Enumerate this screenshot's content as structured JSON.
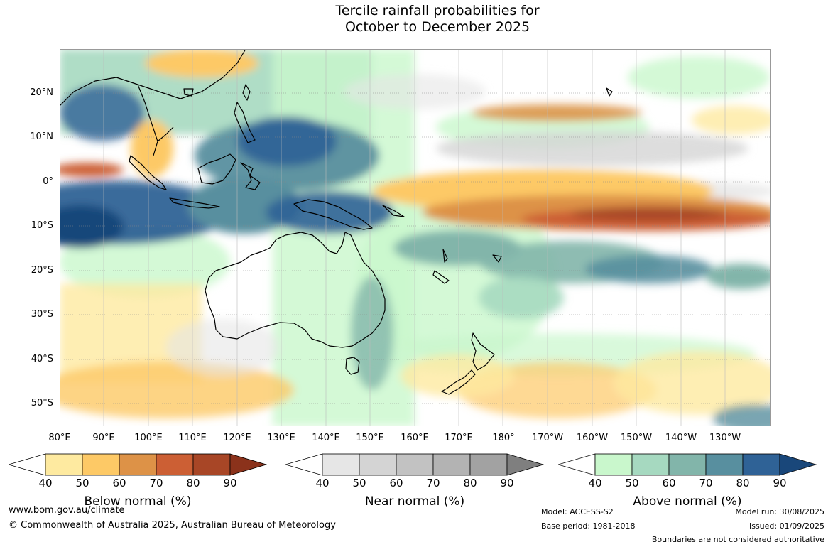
{
  "title_line1": "Tercile rainfall probabilities for",
  "title_line2": "October to December 2025",
  "lat_labels": [
    "20°N",
    "10°N",
    "0°",
    "10°S",
    "20°S",
    "30°S",
    "40°S",
    "50°S"
  ],
  "lon_labels": [
    "80°E",
    "90°E",
    "100°E",
    "110°E",
    "120°E",
    "130°E",
    "140°E",
    "150°E",
    "160°E",
    "170°E",
    "180°",
    "170°W",
    "160°W",
    "150°W",
    "140°W",
    "130°W"
  ],
  "colorbars": [
    {
      "title": "Below normal (%)",
      "ticks": [
        "40",
        "50",
        "60",
        "70",
        "80",
        "90"
      ],
      "colors": [
        "#ffffff",
        "#feeaa0",
        "#fdc966",
        "#dd9247",
        "#cc5f34",
        "#a84626",
        "#8b321b"
      ]
    },
    {
      "title": "Near normal (%)",
      "ticks": [
        "40",
        "50",
        "60",
        "70",
        "80",
        "90"
      ],
      "colors": [
        "#ffffff",
        "#e6e6e6",
        "#d4d4d4",
        "#c2c2c2",
        "#b3b3b3",
        "#a2a2a2",
        "#7f7f7f"
      ]
    },
    {
      "title": "Above normal (%)",
      "ticks": [
        "40",
        "50",
        "60",
        "70",
        "80",
        "90"
      ],
      "colors": [
        "#ffffff",
        "#c9f7cc",
        "#a6d9c0",
        "#82b5aa",
        "#588f9f",
        "#2f6296",
        "#19477a"
      ]
    }
  ],
  "footer": {
    "url": "www.bom.gov.au/climate",
    "copyright": "© Commonwealth of Australia 2025, Australian Bureau of Meteorology",
    "model": "Model: ACCESS-S2",
    "base_period": "Base period: 1981-2018",
    "model_run": "Model run: 30/08/2025",
    "issued": "Issued: 01/09/2025",
    "disclaimer": "Boundaries are not considered authoritative"
  }
}
